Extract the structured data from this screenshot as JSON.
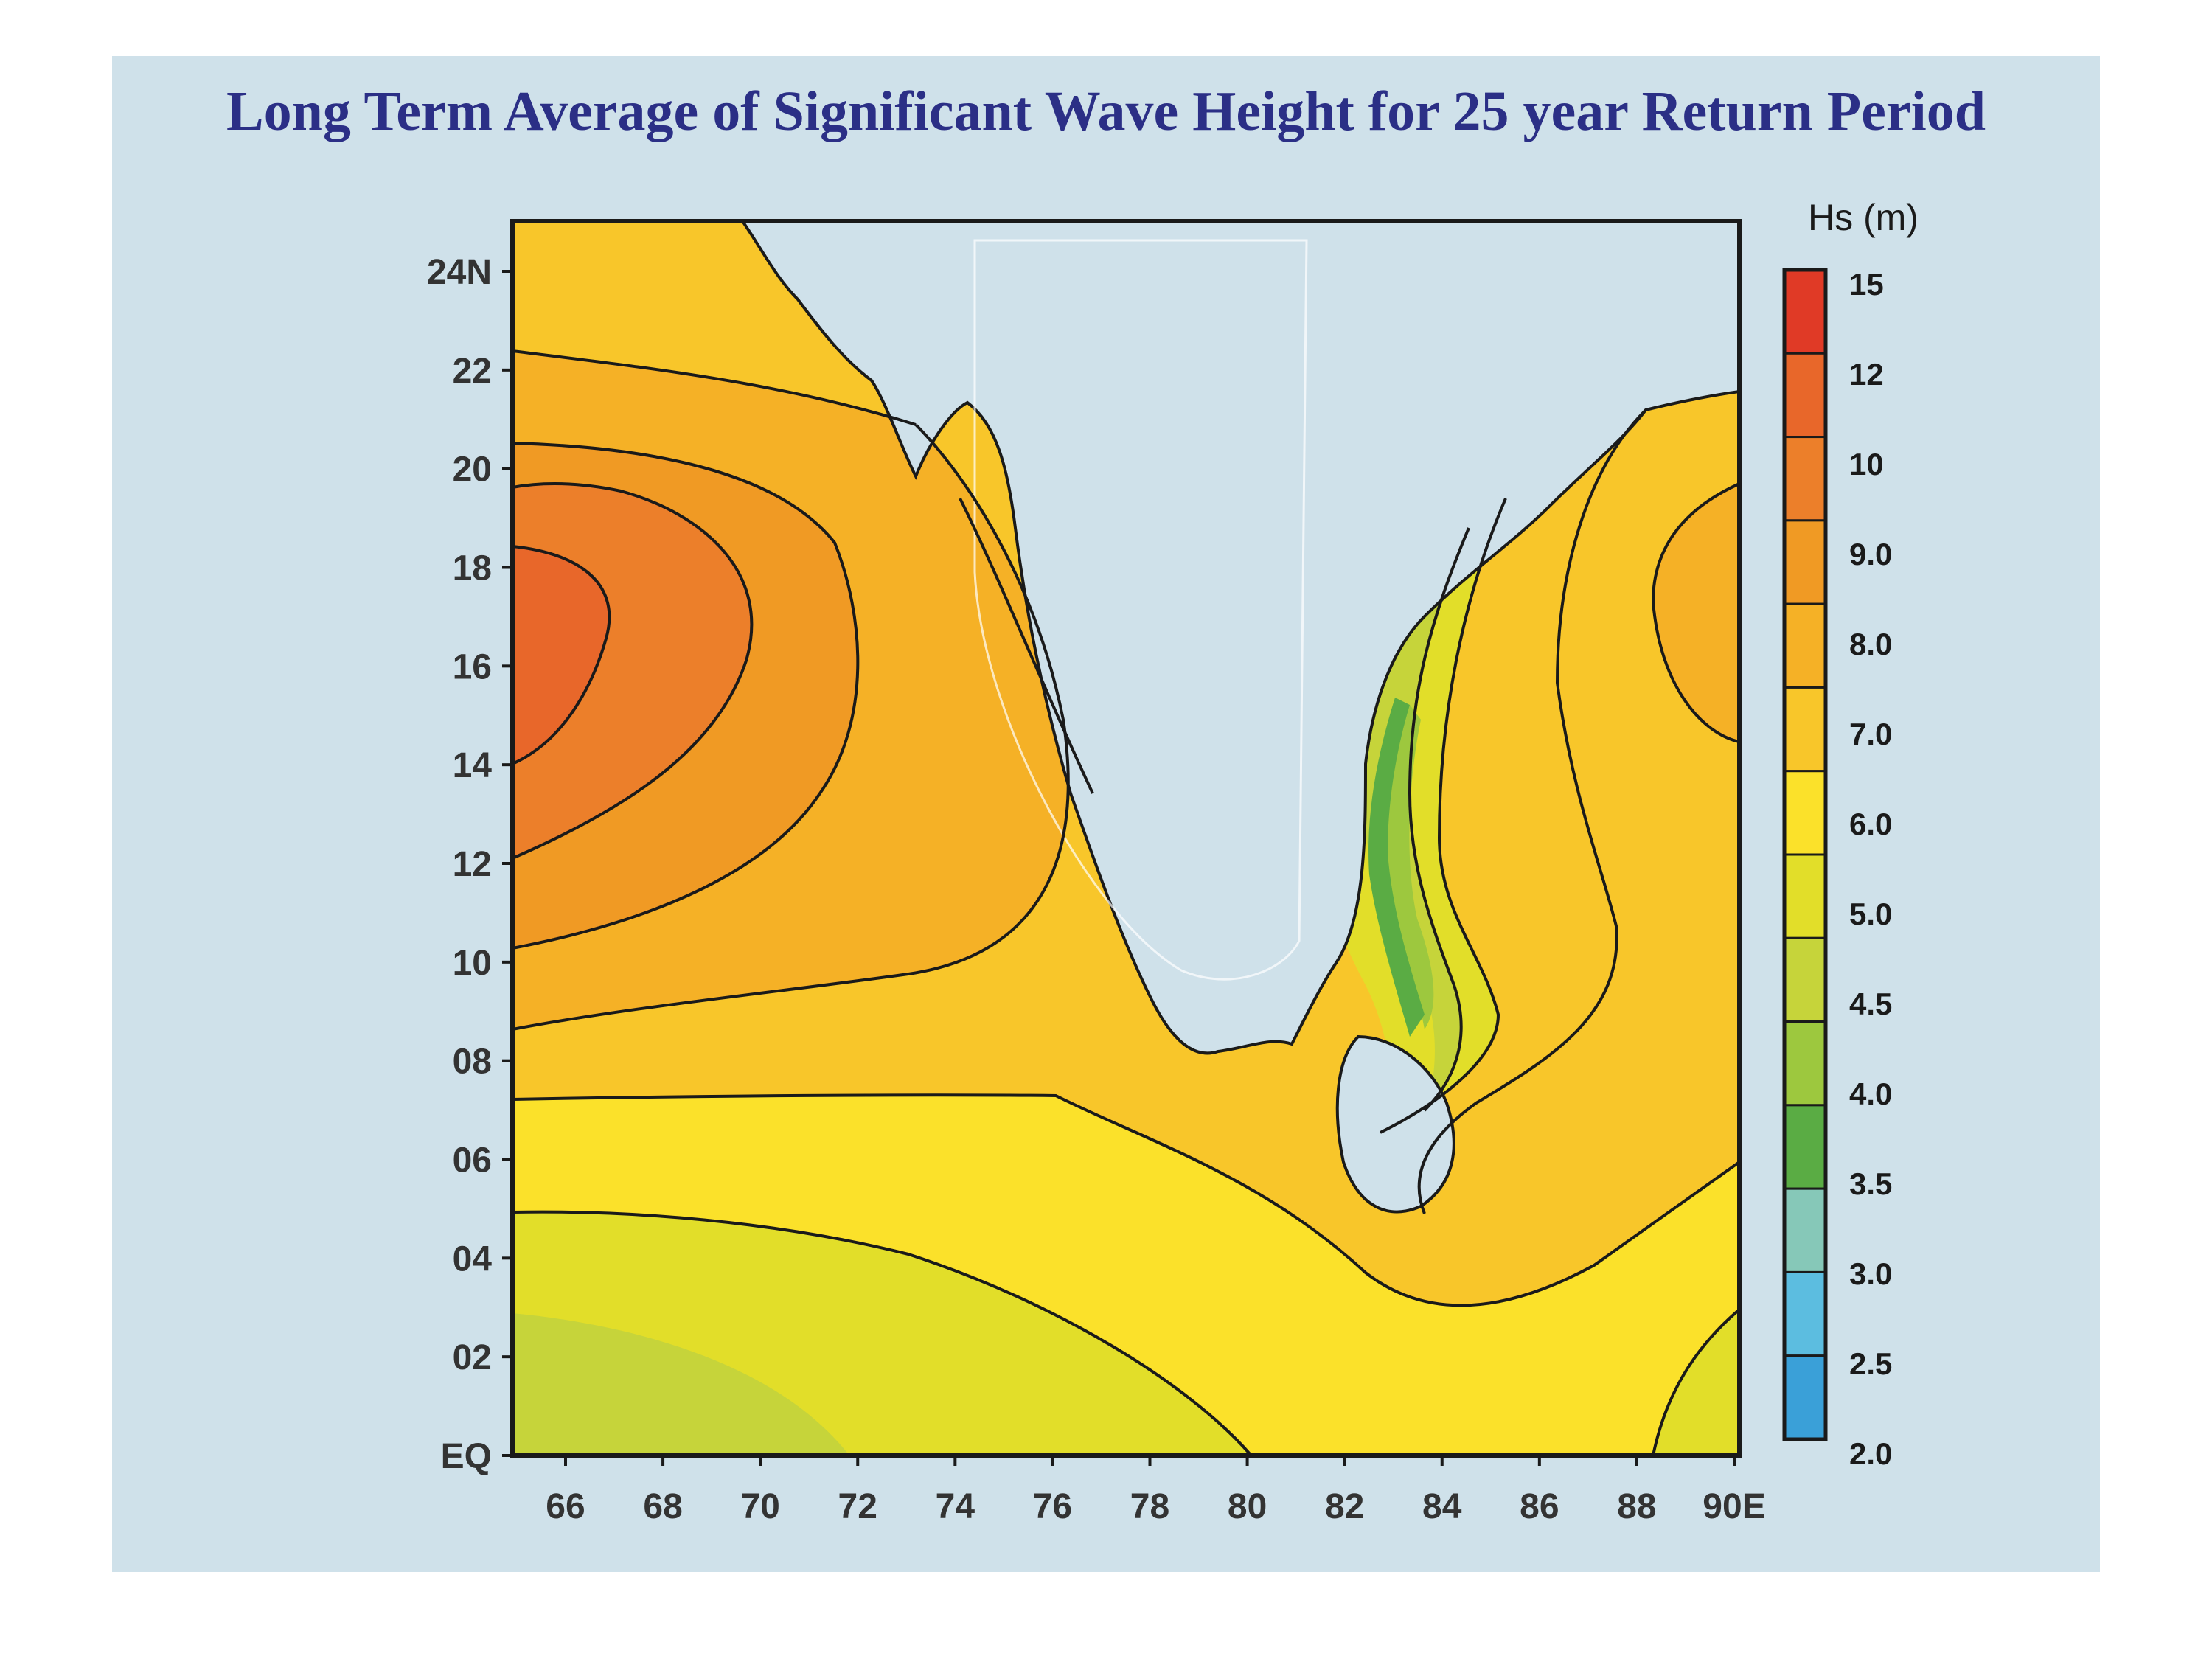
{
  "title": "Long Term Average of Significant Wave Height for 25 year Return Period",
  "map": {
    "x_ticks": [
      "66",
      "68",
      "70",
      "72",
      "74",
      "76",
      "78",
      "80",
      "82",
      "84",
      "86",
      "88",
      "90E"
    ],
    "y_ticks": [
      "EQ",
      "02",
      "04",
      "06",
      "08",
      "10",
      "12",
      "14",
      "16",
      "18",
      "20",
      "22",
      "24N"
    ],
    "land_color": "#cfe1ea"
  },
  "legend": {
    "title": "Hs (m)",
    "labels": [
      "15",
      "12",
      "10",
      "9.0",
      "8.0",
      "7.0",
      "6.0",
      "5.0",
      "4.5",
      "4.0",
      "3.5",
      "3.0",
      "2.5",
      "2.0"
    ],
    "colors": [
      "#e03a26",
      "#e8672a",
      "#ec7f2a",
      "#f09a24",
      "#f5b126",
      "#f8c62a",
      "#fbe12a",
      "#e2de29",
      "#c6d43a",
      "#9dc83e",
      "#5aac44",
      "#86c8b8",
      "#5cbde0",
      "#3aa0d8"
    ]
  }
}
